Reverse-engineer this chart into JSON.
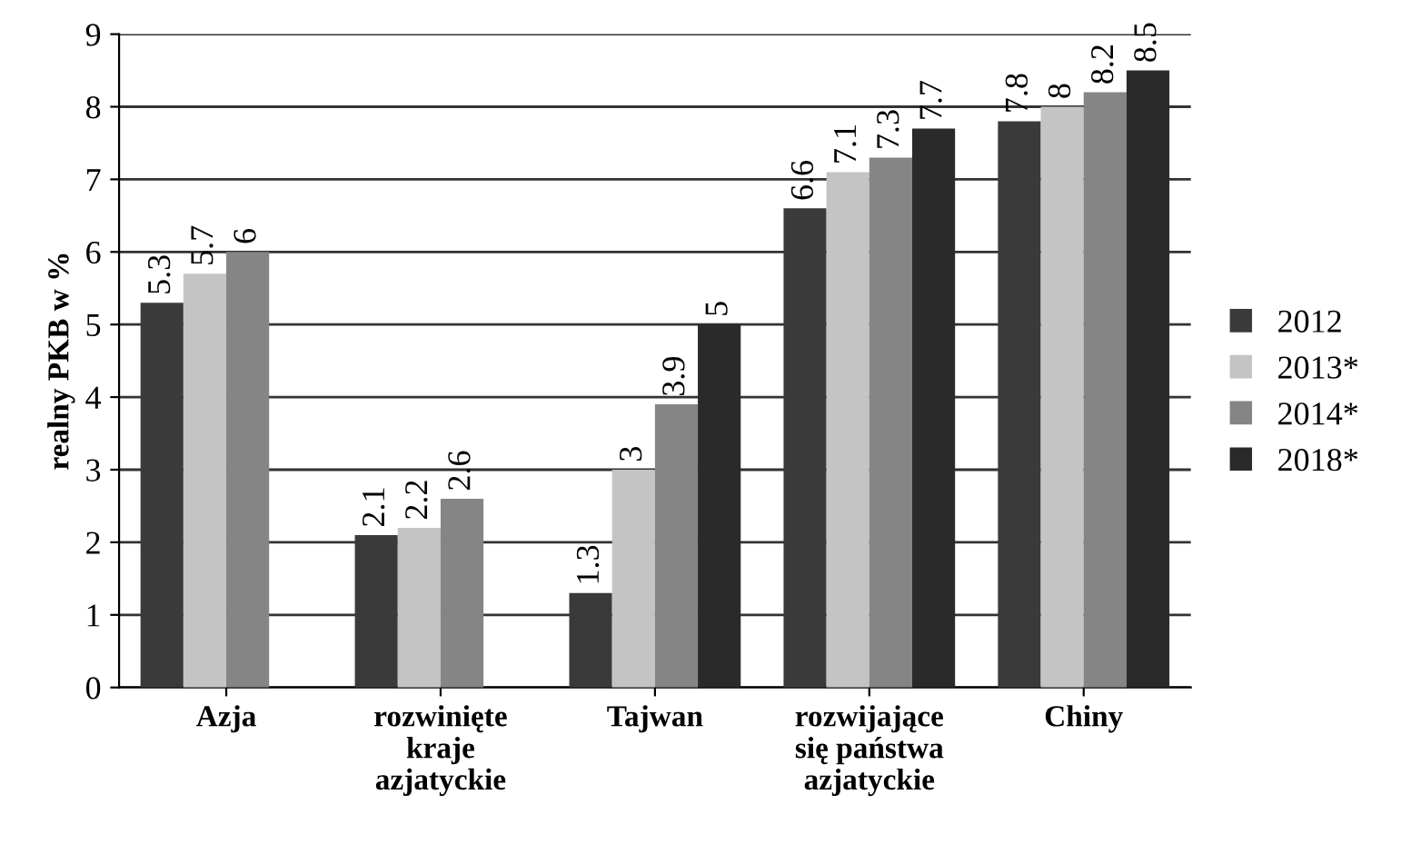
{
  "chart_data": {
    "type": "bar",
    "ylabel": "realny PKB w %",
    "categories": [
      "Azja",
      "rozwinięte\nkraje\nazjatyckie",
      "Tajwan",
      "rozwijające\nsię państwa\nazjatyckie",
      "Chiny"
    ],
    "series": [
      {
        "name": "2012",
        "color": "#3a3a3a",
        "values": [
          5.3,
          2.1,
          1.3,
          6.6,
          7.8
        ]
      },
      {
        "name": "2013*",
        "color": "#c4c4c4",
        "values": [
          5.7,
          2.2,
          3,
          7.1,
          8
        ]
      },
      {
        "name": "2014*",
        "color": "#858585",
        "values": [
          6,
          2.6,
          3.9,
          7.3,
          8.2
        ]
      },
      {
        "name": "2018*",
        "color": "#2a2a2a",
        "values": [
          null,
          null,
          5,
          7.7,
          8.5
        ]
      }
    ],
    "ylim": [
      0,
      9
    ],
    "yticks": [
      0,
      1,
      2,
      3,
      4,
      5,
      6,
      7,
      8,
      9
    ],
    "grid": "y",
    "legend": "right",
    "data_labels": true
  }
}
